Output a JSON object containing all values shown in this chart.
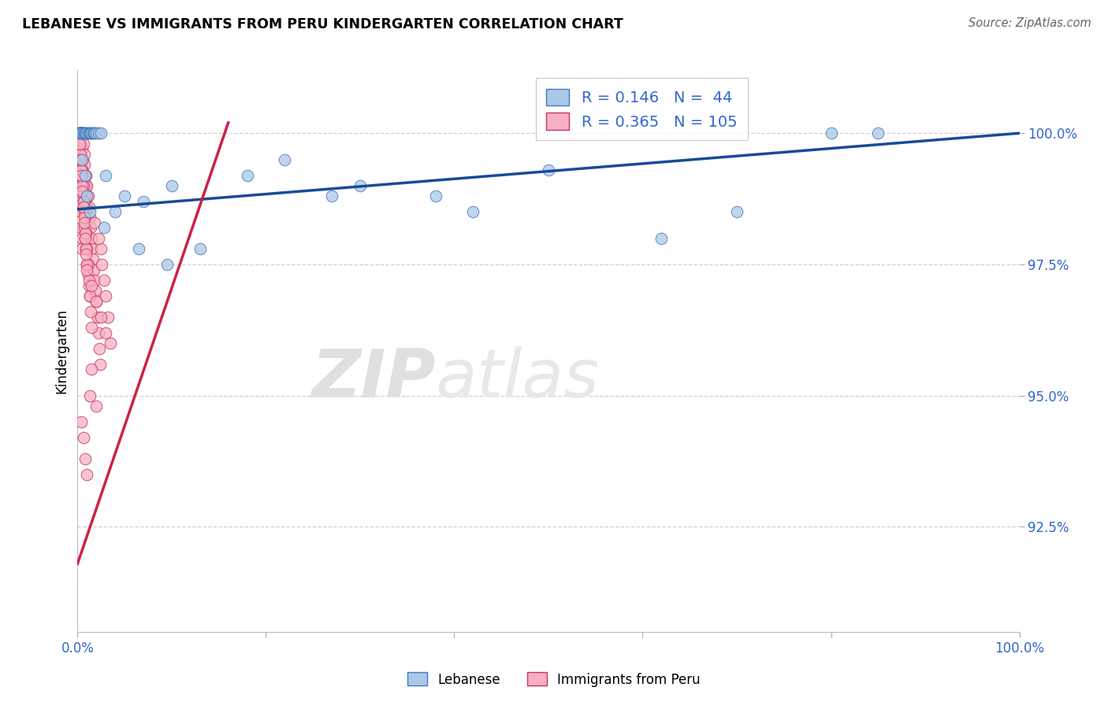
{
  "title": "LEBANESE VS IMMIGRANTS FROM PERU KINDERGARTEN CORRELATION CHART",
  "source": "Source: ZipAtlas.com",
  "ylabel": "Kindergarten",
  "y_tick_values": [
    92.5,
    95.0,
    97.5,
    100.0
  ],
  "x_range": [
    0.0,
    100.0
  ],
  "y_min": 90.5,
  "y_max": 101.2,
  "legend_blue_label": "Lebanese",
  "legend_pink_label": "Immigrants from Peru",
  "r_blue": 0.146,
  "n_blue": 44,
  "r_pink": 0.365,
  "n_pink": 105,
  "blue_color": "#aac8e8",
  "pink_color": "#f8b0c4",
  "blue_edge_color": "#4477bb",
  "pink_edge_color": "#cc3355",
  "blue_line_color": "#1a4a99",
  "pink_line_color": "#cc2244",
  "legend_text_color": "#3366cc",
  "watermark_zip": "ZIP",
  "watermark_atlas": "atlas",
  "blue_line_x": [
    0.0,
    100.0
  ],
  "blue_line_y": [
    98.55,
    100.0
  ],
  "pink_line_x": [
    0.0,
    16.0
  ],
  "pink_line_y": [
    91.8,
    100.2
  ],
  "blue_scatter_x": [
    0.2,
    0.3,
    0.4,
    0.5,
    0.6,
    0.7,
    0.8,
    0.9,
    1.0,
    1.1,
    1.2,
    1.3,
    1.4,
    1.5,
    1.6,
    1.7,
    1.8,
    2.0,
    2.2,
    2.5,
    3.0,
    4.0,
    5.0,
    7.0,
    10.0,
    13.0,
    18.0,
    22.0,
    30.0,
    38.0,
    50.0,
    62.0,
    70.0,
    80.0,
    0.5,
    0.8,
    1.0,
    1.3,
    2.8,
    6.5,
    9.5,
    27.0,
    42.0,
    85.0
  ],
  "blue_scatter_y": [
    100.0,
    100.0,
    100.0,
    100.0,
    100.0,
    100.0,
    100.0,
    100.0,
    100.0,
    100.0,
    100.0,
    100.0,
    100.0,
    100.0,
    100.0,
    100.0,
    100.0,
    100.0,
    100.0,
    100.0,
    99.2,
    98.5,
    98.8,
    98.7,
    99.0,
    97.8,
    99.2,
    99.5,
    99.0,
    98.8,
    99.3,
    98.0,
    98.5,
    100.0,
    99.5,
    99.2,
    98.8,
    98.5,
    98.2,
    97.8,
    97.5,
    98.8,
    98.5,
    100.0
  ],
  "pink_scatter_x": [
    0.1,
    0.1,
    0.15,
    0.15,
    0.2,
    0.2,
    0.25,
    0.25,
    0.3,
    0.3,
    0.3,
    0.35,
    0.35,
    0.4,
    0.4,
    0.4,
    0.45,
    0.45,
    0.5,
    0.5,
    0.5,
    0.5,
    0.55,
    0.6,
    0.6,
    0.65,
    0.65,
    0.7,
    0.7,
    0.75,
    0.75,
    0.8,
    0.8,
    0.85,
    0.9,
    0.9,
    0.95,
    1.0,
    1.0,
    1.0,
    1.1,
    1.1,
    1.2,
    1.2,
    1.3,
    1.3,
    1.4,
    1.5,
    1.5,
    1.6,
    1.7,
    1.8,
    1.9,
    2.0,
    2.1,
    2.2,
    2.3,
    2.4,
    2.5,
    2.6,
    2.8,
    3.0,
    3.2,
    3.5,
    0.5,
    0.6,
    0.7,
    0.8,
    0.9,
    1.0,
    1.1,
    1.2,
    1.3,
    1.4,
    1.5,
    0.3,
    0.4,
    0.5,
    0.6,
    0.7,
    0.8,
    0.9,
    1.0,
    0.2,
    0.3,
    0.4,
    0.5,
    0.6,
    0.7,
    0.8,
    0.9,
    1.0,
    1.5,
    2.0,
    2.5,
    3.0,
    1.8,
    2.2,
    1.3,
    0.4,
    0.6,
    0.8,
    1.0,
    1.5,
    2.0
  ],
  "pink_scatter_y": [
    100.0,
    99.8,
    100.0,
    99.5,
    100.0,
    99.3,
    100.0,
    99.0,
    100.0,
    99.8,
    98.8,
    100.0,
    98.5,
    100.0,
    99.5,
    98.2,
    100.0,
    98.0,
    100.0,
    99.7,
    99.3,
    97.8,
    99.5,
    100.0,
    99.1,
    99.8,
    98.8,
    99.6,
    98.5,
    99.4,
    98.2,
    99.2,
    98.0,
    99.0,
    99.2,
    97.8,
    98.8,
    99.0,
    98.6,
    97.5,
    98.8,
    97.3,
    98.6,
    97.1,
    98.4,
    96.9,
    98.2,
    98.0,
    97.8,
    97.6,
    97.4,
    97.2,
    97.0,
    96.8,
    96.5,
    96.2,
    95.9,
    95.6,
    97.8,
    97.5,
    97.2,
    96.9,
    96.5,
    96.0,
    99.3,
    99.0,
    98.7,
    98.4,
    98.1,
    97.8,
    97.5,
    97.2,
    96.9,
    96.6,
    96.3,
    99.6,
    99.3,
    99.0,
    98.7,
    98.4,
    98.1,
    97.8,
    97.5,
    99.8,
    99.5,
    99.2,
    98.9,
    98.6,
    98.3,
    98.0,
    97.7,
    97.4,
    97.1,
    96.8,
    96.5,
    96.2,
    98.3,
    98.0,
    95.0,
    94.5,
    94.2,
    93.8,
    93.5,
    95.5,
    94.8
  ]
}
